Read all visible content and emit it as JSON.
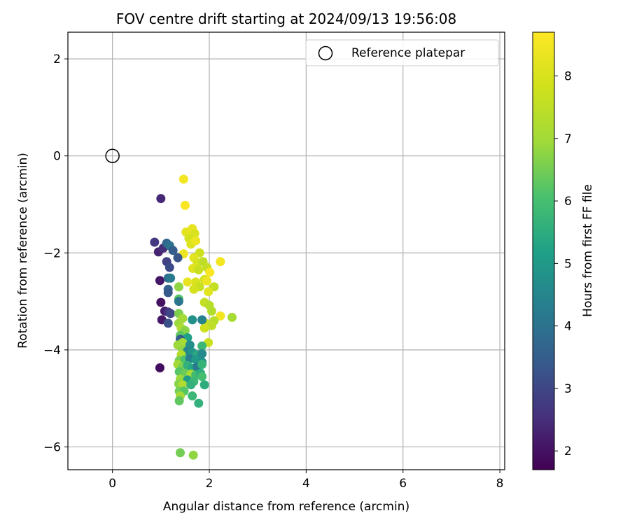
{
  "chart_data": {
    "type": "scatter",
    "title": "FOV centre drift starting at 2024/09/13 19:56:08",
    "xlabel": "Angular distance from reference (arcmin)",
    "ylabel": "Rotation from reference (arcmin)",
    "xlim": [
      -0.92,
      8.1
    ],
    "ylim": [
      -6.47,
      2.55
    ],
    "xticks": [
      0,
      2,
      4,
      6,
      8
    ],
    "yticks": [
      2,
      0,
      -2,
      -4,
      -6
    ],
    "grid": true,
    "legend": {
      "placement": "top-right",
      "entries": [
        "Reference platepar"
      ]
    },
    "reference_point": {
      "name": "Reference platepar",
      "x": 0,
      "y": 0
    },
    "colorbar": {
      "label": "Hours from first FF file",
      "range": [
        1.7,
        8.7
      ],
      "ticks": [
        2,
        3,
        4,
        5,
        6,
        7,
        8
      ],
      "colormap": "viridis"
    },
    "points": [
      {
        "x": 1.47,
        "y": -0.48,
        "h": 8.5
      },
      {
        "x": 1.5,
        "y": -1.02,
        "h": 8.6
      },
      {
        "x": 1.0,
        "y": -0.88,
        "h": 2.4
      },
      {
        "x": 1.52,
        "y": -1.57,
        "h": 8.2
      },
      {
        "x": 1.65,
        "y": -1.5,
        "h": 8.3
      },
      {
        "x": 1.7,
        "y": -1.6,
        "h": 8.0
      },
      {
        "x": 1.58,
        "y": -1.7,
        "h": 7.9
      },
      {
        "x": 1.62,
        "y": -1.82,
        "h": 8.1
      },
      {
        "x": 1.72,
        "y": -1.75,
        "h": 8.4
      },
      {
        "x": 1.47,
        "y": -2.02,
        "h": 8.4
      },
      {
        "x": 1.8,
        "y": -2.0,
        "h": 7.8
      },
      {
        "x": 1.68,
        "y": -2.1,
        "h": 8.2
      },
      {
        "x": 1.75,
        "y": -2.2,
        "h": 8.0
      },
      {
        "x": 1.87,
        "y": -2.18,
        "h": 7.5
      },
      {
        "x": 1.95,
        "y": -2.3,
        "h": 7.6
      },
      {
        "x": 1.66,
        "y": -2.32,
        "h": 8.1
      },
      {
        "x": 1.78,
        "y": -2.35,
        "h": 7.7
      },
      {
        "x": 2.23,
        "y": -2.18,
        "h": 8.5
      },
      {
        "x": 2.01,
        "y": -2.4,
        "h": 8.6
      },
      {
        "x": 1.9,
        "y": -2.55,
        "h": 7.9
      },
      {
        "x": 1.72,
        "y": -2.6,
        "h": 8.0
      },
      {
        "x": 1.55,
        "y": -2.6,
        "h": 8.3
      },
      {
        "x": 1.95,
        "y": -2.58,
        "h": 8.4
      },
      {
        "x": 2.1,
        "y": -2.7,
        "h": 7.6
      },
      {
        "x": 1.8,
        "y": -2.7,
        "h": 7.7
      },
      {
        "x": 1.68,
        "y": -2.75,
        "h": 7.9
      },
      {
        "x": 1.98,
        "y": -2.8,
        "h": 8.2
      },
      {
        "x": 1.9,
        "y": -3.02,
        "h": 7.6
      },
      {
        "x": 2.0,
        "y": -3.08,
        "h": 7.4
      },
      {
        "x": 2.05,
        "y": -3.2,
        "h": 7.3
      },
      {
        "x": 2.23,
        "y": -3.3,
        "h": 8.5
      },
      {
        "x": 2.47,
        "y": -3.33,
        "h": 7.1
      },
      {
        "x": 2.1,
        "y": -3.4,
        "h": 7.4
      },
      {
        "x": 1.92,
        "y": -3.45,
        "h": 7.6
      },
      {
        "x": 2.05,
        "y": -3.5,
        "h": 7.5
      },
      {
        "x": 1.9,
        "y": -3.55,
        "h": 7.8
      },
      {
        "x": 1.98,
        "y": -3.85,
        "h": 7.7
      },
      {
        "x": 0.87,
        "y": -1.78,
        "h": 2.7
      },
      {
        "x": 0.95,
        "y": -1.98,
        "h": 2.3
      },
      {
        "x": 1.05,
        "y": -1.9,
        "h": 2.5
      },
      {
        "x": 1.12,
        "y": -1.8,
        "h": 3.7
      },
      {
        "x": 1.18,
        "y": -1.85,
        "h": 4.0
      },
      {
        "x": 1.25,
        "y": -1.95,
        "h": 3.5
      },
      {
        "x": 1.35,
        "y": -2.1,
        "h": 3.3
      },
      {
        "x": 1.12,
        "y": -2.18,
        "h": 2.9
      },
      {
        "x": 1.18,
        "y": -2.3,
        "h": 3.1
      },
      {
        "x": 0.98,
        "y": -2.57,
        "h": 2.1
      },
      {
        "x": 1.15,
        "y": -2.52,
        "h": 3.8
      },
      {
        "x": 1.2,
        "y": -2.52,
        "h": 4.2
      },
      {
        "x": 1.15,
        "y": -2.75,
        "h": 3.6
      },
      {
        "x": 1.15,
        "y": -2.82,
        "h": 3.4
      },
      {
        "x": 1.37,
        "y": -2.7,
        "h": 6.8
      },
      {
        "x": 1.37,
        "y": -2.95,
        "h": 6.2
      },
      {
        "x": 1.37,
        "y": -3.0,
        "h": 4.1
      },
      {
        "x": 1.0,
        "y": -3.02,
        "h": 2.0
      },
      {
        "x": 1.08,
        "y": -3.2,
        "h": 2.2
      },
      {
        "x": 1.15,
        "y": -3.22,
        "h": 2.6
      },
      {
        "x": 1.2,
        "y": -3.25,
        "h": 3.0
      },
      {
        "x": 1.37,
        "y": -3.25,
        "h": 6.6
      },
      {
        "x": 1.02,
        "y": -3.38,
        "h": 2.1
      },
      {
        "x": 1.15,
        "y": -3.45,
        "h": 3.2
      },
      {
        "x": 1.37,
        "y": -3.45,
        "h": 6.9
      },
      {
        "x": 1.45,
        "y": -3.35,
        "h": 7.0
      },
      {
        "x": 1.65,
        "y": -3.38,
        "h": 4.8
      },
      {
        "x": 1.85,
        "y": -3.38,
        "h": 4.4
      },
      {
        "x": 1.42,
        "y": -3.55,
        "h": 7.2
      },
      {
        "x": 1.5,
        "y": -3.6,
        "h": 6.7
      },
      {
        "x": 1.4,
        "y": -3.7,
        "h": 6.3
      },
      {
        "x": 1.55,
        "y": -3.75,
        "h": 5.2
      },
      {
        "x": 1.4,
        "y": -3.78,
        "h": 3.5
      },
      {
        "x": 1.45,
        "y": -3.85,
        "h": 7.1
      },
      {
        "x": 1.35,
        "y": -3.9,
        "h": 6.9
      },
      {
        "x": 1.6,
        "y": -3.9,
        "h": 4.7
      },
      {
        "x": 1.85,
        "y": -3.92,
        "h": 5.8
      },
      {
        "x": 1.45,
        "y": -4.0,
        "h": 6.8
      },
      {
        "x": 1.55,
        "y": -4.02,
        "h": 4.5
      },
      {
        "x": 1.42,
        "y": -4.1,
        "h": 7.3
      },
      {
        "x": 1.65,
        "y": -4.05,
        "h": 4.9
      },
      {
        "x": 1.75,
        "y": -4.1,
        "h": 5.4
      },
      {
        "x": 1.85,
        "y": -4.08,
        "h": 4.6
      },
      {
        "x": 1.38,
        "y": -4.22,
        "h": 6.5
      },
      {
        "x": 1.5,
        "y": -4.2,
        "h": 6.1
      },
      {
        "x": 1.6,
        "y": -4.18,
        "h": 4.3
      },
      {
        "x": 1.72,
        "y": -4.2,
        "h": 5.0
      },
      {
        "x": 1.85,
        "y": -4.25,
        "h": 4.8
      },
      {
        "x": 1.35,
        "y": -4.3,
        "h": 7.0
      },
      {
        "x": 1.45,
        "y": -4.35,
        "h": 6.6
      },
      {
        "x": 1.55,
        "y": -4.32,
        "h": 5.6
      },
      {
        "x": 1.65,
        "y": -4.38,
        "h": 5.3
      },
      {
        "x": 1.75,
        "y": -4.35,
        "h": 4.2
      },
      {
        "x": 1.85,
        "y": -4.3,
        "h": 5.7
      },
      {
        "x": 0.98,
        "y": -4.37,
        "h": 1.9
      },
      {
        "x": 1.38,
        "y": -4.45,
        "h": 6.2
      },
      {
        "x": 1.5,
        "y": -4.48,
        "h": 6.4
      },
      {
        "x": 1.62,
        "y": -4.5,
        "h": 7.1
      },
      {
        "x": 1.72,
        "y": -4.52,
        "h": 5.9
      },
      {
        "x": 1.82,
        "y": -4.48,
        "h": 5.5
      },
      {
        "x": 1.4,
        "y": -4.6,
        "h": 6.9
      },
      {
        "x": 1.55,
        "y": -4.62,
        "h": 5.1
      },
      {
        "x": 1.68,
        "y": -4.65,
        "h": 5.8
      },
      {
        "x": 1.85,
        "y": -4.55,
        "h": 6.0
      },
      {
        "x": 1.37,
        "y": -4.7,
        "h": 6.7
      },
      {
        "x": 1.45,
        "y": -4.72,
        "h": 7.2
      },
      {
        "x": 1.62,
        "y": -4.72,
        "h": 5.6
      },
      {
        "x": 1.9,
        "y": -4.72,
        "h": 5.5
      },
      {
        "x": 1.38,
        "y": -4.85,
        "h": 6.5
      },
      {
        "x": 1.48,
        "y": -4.85,
        "h": 6.2
      },
      {
        "x": 1.4,
        "y": -4.95,
        "h": 7.0
      },
      {
        "x": 1.65,
        "y": -4.95,
        "h": 5.8
      },
      {
        "x": 1.38,
        "y": -5.05,
        "h": 6.3
      },
      {
        "x": 1.78,
        "y": -5.1,
        "h": 5.6
      },
      {
        "x": 1.4,
        "y": -6.12,
        "h": 6.5
      },
      {
        "x": 1.67,
        "y": -6.17,
        "h": 6.8
      }
    ]
  }
}
